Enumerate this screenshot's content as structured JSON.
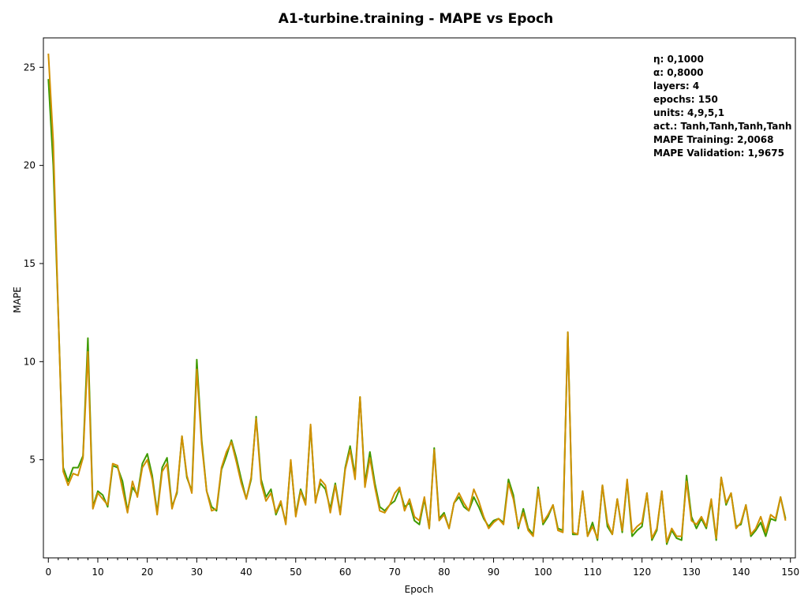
{
  "chart_data": {
    "type": "line",
    "title": "A1-turbine.training - MAPE vs Epoch",
    "xlabel": "Epoch",
    "ylabel": "MAPE",
    "xlim": [
      -1,
      151
    ],
    "ylim": [
      0,
      26.5
    ],
    "x_ticks": [
      0,
      10,
      20,
      30,
      40,
      50,
      60,
      70,
      80,
      90,
      100,
      110,
      120,
      130,
      140,
      150
    ],
    "y_ticks": [
      5,
      10,
      15,
      20,
      25
    ],
    "grid": false,
    "legend": "none",
    "info_box": {
      "placement": "top-right",
      "lines": [
        "η: 0,1000",
        "α: 0,8000",
        "layers: 4",
        "epochs: 150",
        "units: 4,9,5,1",
        "act.: Tanh,Tanh,Tanh,Tanh",
        "MAPE Training: 2,0068",
        "MAPE Validation: 1,9675"
      ]
    },
    "series": [
      {
        "color": "#3e9a00",
        "values": [
          24.4,
          20.0,
          12.5,
          4.6,
          3.9,
          4.6,
          4.6,
          5.2,
          11.2,
          2.6,
          3.4,
          3.2,
          2.6,
          4.7,
          4.6,
          3.9,
          2.4,
          3.6,
          3.2,
          4.8,
          5.3,
          4.2,
          2.3,
          4.6,
          5.1,
          2.6,
          3.3,
          6.2,
          4.1,
          3.4,
          10.1,
          6.0,
          3.4,
          2.6,
          2.4,
          4.5,
          5.2,
          6.0,
          5.1,
          4.0,
          3.0,
          4.0,
          7.2,
          4.0,
          3.1,
          3.5,
          2.2,
          2.8,
          1.8,
          4.9,
          2.2,
          3.5,
          2.8,
          6.7,
          2.9,
          3.8,
          3.5,
          2.5,
          3.8,
          2.3,
          4.6,
          5.7,
          4.2,
          8.2,
          3.8,
          5.4,
          3.8,
          2.6,
          2.4,
          2.7,
          2.9,
          3.5,
          2.6,
          2.8,
          1.9,
          1.7,
          3.0,
          1.5,
          5.6,
          2.0,
          2.3,
          1.5,
          2.8,
          3.1,
          2.6,
          2.4,
          3.1,
          2.6,
          2.0,
          1.6,
          1.9,
          2.0,
          1.8,
          4.0,
          3.2,
          1.5,
          2.5,
          1.5,
          1.2,
          3.6,
          1.7,
          2.1,
          2.7,
          1.5,
          1.4,
          11.5,
          1.2,
          1.2,
          3.4,
          1.1,
          1.8,
          0.9,
          3.7,
          1.6,
          1.2,
          3.0,
          1.3,
          3.9,
          1.1,
          1.4,
          1.6,
          3.3,
          0.9,
          1.4,
          3.4,
          0.7,
          1.4,
          1.0,
          0.9,
          4.2,
          2.1,
          1.5,
          2.0,
          1.5,
          2.9,
          0.9,
          4.1,
          2.7,
          3.3,
          1.6,
          1.7,
          2.7,
          1.1,
          1.4,
          1.8,
          1.1,
          2.0,
          1.9,
          3.1,
          2.0
        ]
      },
      {
        "color": "#d09000",
        "values": [
          25.7,
          21.2,
          12.5,
          4.4,
          3.7,
          4.3,
          4.2,
          5.1,
          10.5,
          2.5,
          3.3,
          3.0,
          2.7,
          4.8,
          4.7,
          3.5,
          2.3,
          3.9,
          3.1,
          4.6,
          5.0,
          4.0,
          2.2,
          4.4,
          4.8,
          2.5,
          3.4,
          6.2,
          4.2,
          3.3,
          9.6,
          5.8,
          3.4,
          2.4,
          2.5,
          4.6,
          5.4,
          5.9,
          4.9,
          3.8,
          3.0,
          4.1,
          7.1,
          3.8,
          2.9,
          3.3,
          2.3,
          2.9,
          1.7,
          5.0,
          2.1,
          3.4,
          2.7,
          6.8,
          2.8,
          4.0,
          3.7,
          2.3,
          3.7,
          2.2,
          4.5,
          5.5,
          4.0,
          8.2,
          3.6,
          5.1,
          3.6,
          2.4,
          2.3,
          2.7,
          3.3,
          3.6,
          2.4,
          3.0,
          2.1,
          1.9,
          3.1,
          1.5,
          5.5,
          1.9,
          2.2,
          1.5,
          2.8,
          3.3,
          2.8,
          2.4,
          3.5,
          2.9,
          2.1,
          1.5,
          1.8,
          2.0,
          1.7,
          3.8,
          3.0,
          1.6,
          2.3,
          1.4,
          1.1,
          3.5,
          1.8,
          2.2,
          2.7,
          1.4,
          1.3,
          11.5,
          1.3,
          1.2,
          3.4,
          1.1,
          1.6,
          1.0,
          3.7,
          1.8,
          1.2,
          3.0,
          1.4,
          4.0,
          1.3,
          1.6,
          1.8,
          3.3,
          1.0,
          1.5,
          3.4,
          0.8,
          1.5,
          1.1,
          1.1,
          3.9,
          1.9,
          1.7,
          2.1,
          1.6,
          3.0,
          1.0,
          4.1,
          2.8,
          3.3,
          1.5,
          1.8,
          2.7,
          1.2,
          1.5,
          2.1,
          1.3,
          2.2,
          2.0,
          3.1,
          1.9
        ]
      }
    ]
  }
}
